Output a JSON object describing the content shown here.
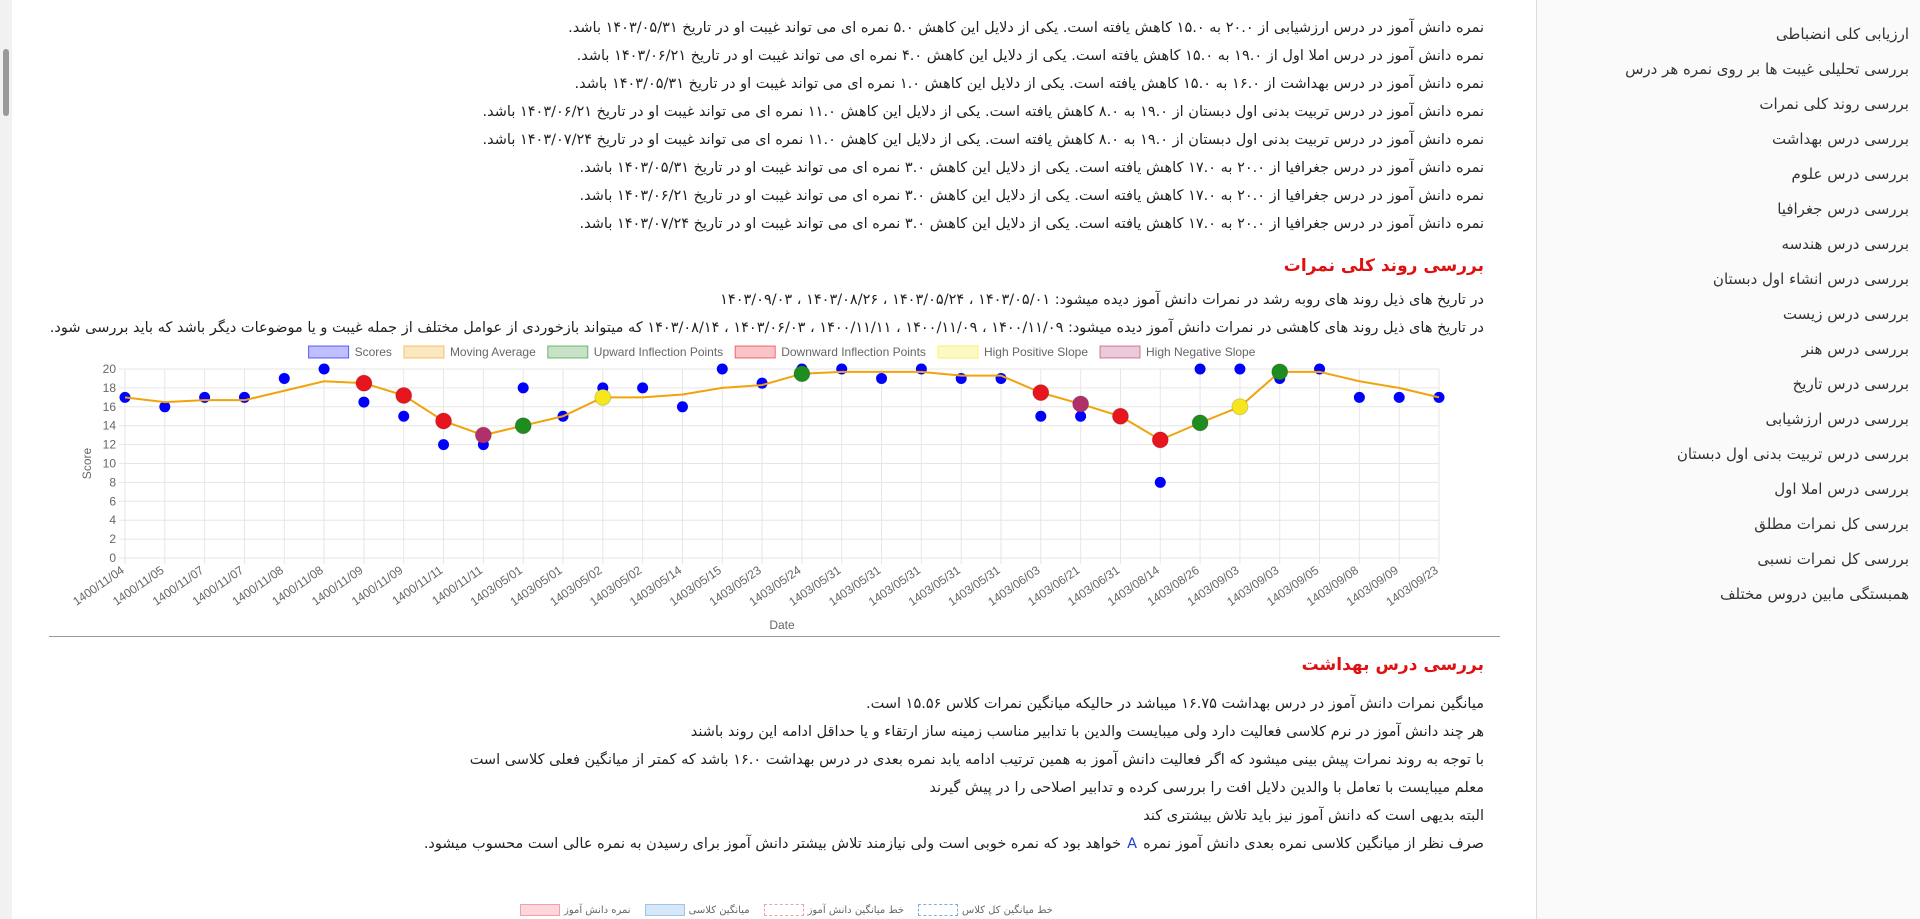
{
  "report": {
    "absence_lines": [
      "نمره دانش آموز در درس ارزشیابی از ۲۰.۰ به ۱۵.۰ کاهش یافته است. یکی از دلایل این کاهش ۵.۰ نمره ای می تواند غیبت او در تاریخ ۱۴۰۳/۰۵/۳۱ باشد.",
      "نمره دانش آموز در درس املا اول از ۱۹.۰ به ۱۵.۰ کاهش یافته است. یکی از دلایل این کاهش ۴.۰ نمره ای می تواند غیبت او در تاریخ ۱۴۰۳/۰۶/۲۱ باشد.",
      "نمره دانش آموز در درس بهداشت از ۱۶.۰ به ۱۵.۰ کاهش یافته است. یکی از دلایل این کاهش ۱.۰ نمره ای می تواند غیبت او در تاریخ ۱۴۰۳/۰۵/۳۱ باشد.",
      "نمره دانش آموز در درس تربیت بدنی اول دبستان از ۱۹.۰ به ۸.۰ کاهش یافته است. یکی از دلایل این کاهش ۱۱.۰ نمره ای می تواند غیبت او در تاریخ ۱۴۰۳/۰۶/۲۱ باشد.",
      "نمره دانش آموز در درس تربیت بدنی اول دبستان از ۱۹.۰ به ۸.۰ کاهش یافته است. یکی از دلایل این کاهش ۱۱.۰ نمره ای می تواند غیبت او در تاریخ ۱۴۰۳/۰۷/۲۴ باشد.",
      "نمره دانش آموز در درس جغرافیا از ۲۰.۰ به ۱۷.۰ کاهش یافته است. یکی از دلایل این کاهش ۳.۰ نمره ای می تواند غیبت او در تاریخ ۱۴۰۳/۰۵/۳۱ باشد.",
      "نمره دانش آموز در درس جغرافیا از ۲۰.۰ به ۱۷.۰ کاهش یافته است. یکی از دلایل این کاهش ۳.۰ نمره ای می تواند غیبت او در تاریخ ۱۴۰۳/۰۶/۲۱ باشد.",
      "نمره دانش آموز در درس جغرافیا از ۲۰.۰ به ۱۷.۰ کاهش یافته است. یکی از دلایل این کاهش ۳.۰ نمره ای می تواند غیبت او در تاریخ ۱۴۰۳/۰۷/۲۴ باشد."
    ],
    "trend": {
      "heading": "بررسی روند کلی نمرات",
      "growth": "در تاریخ های ذیل روند های روبه رشد در نمرات دانش آموز دیده میشود: ۱۴۰۳/۰۵/۰۱ ، ۱۴۰۳/۰۵/۲۴ ، ۱۴۰۳/۰۸/۲۶ ، ۱۴۰۳/۰۹/۰۳",
      "decline": "در تاریخ های ذیل روند های کاهشی در نمرات دانش آموز دیده میشود: ۱۴۰۰/۱۱/۰۹ ، ۱۴۰۰/۱۱/۰۹ ، ۱۴۰۰/۱۱/۱۱ ، ۱۴۰۳/۰۶/۰۳ ، ۱۴۰۳/۰۸/۱۴ که میتواند بازخوردی از عوامل مختلف از جمله غیبت و یا موضوعات دیگر باشد که باید بررسی شود."
    },
    "health": {
      "heading": "بررسی درس بهداشت",
      "lines": [
        "میانگین نمرات دانش آموز در درس بهداشت ۱۶.۷۵ میباشد در حالیکه میانگین نمرات کلاس ۱۵.۵۶ است.",
        "هر چند دانش آموز در نرم کلاسی فعالیت دارد ولی میبایست والدین با تدابیر مناسب زمینه ساز ارتقاء و یا حداقل ادامه این روند باشند",
        "با توجه به روند نمرات پیش بینی میشود که اگر فعالیت دانش آموز به همین ترتیب ادامه یابد نمره بعدی در درس بهداشت ۱۶.۰ باشد که کمتر از میانگین فعلی کلاسی است",
        "معلم میبایست با تعامل با والدین دلایل افت را بررسی کرده و تدابیر اصلاحی را در پیش گیرند",
        "البته بدیهی است که دانش آموز نیز باید تلاش بیشتری کند"
      ],
      "grade_line": {
        "before": "صرف نظر از میانگین کلاسی نمره بعدی دانش آموز نمره",
        "grade": "A",
        "after": "خواهد بود که نمره خوبی است ولی نیازمند تلاش بیشتر دانش آموز برای رسیدن به نمره عالی است محسوب میشود."
      }
    },
    "bottom_legend": [
      "نمره دانش آموز",
      "میانگین کلاسی",
      "خط میانگین دانش آموز",
      "خط میانگین کل کلاس"
    ]
  },
  "sidebar": {
    "items": [
      "ارزیابی کلی انضباطی",
      "بررسی تحلیلی غیبت ها بر روی نمره هر درس",
      "بررسی روند کلی نمرات",
      "بررسی درس بهداشت",
      "بررسی درس علوم",
      "بررسی درس جغرافیا",
      "بررسی درس هندسه",
      "بررسی درس انشاء اول دبستان",
      "بررسی درس زیست",
      "بررسی درس هنر",
      "بررسی درس تاریخ",
      "بررسی درس ارزشیابی",
      "بررسی درس تربیت بدنی اول دبستان",
      "بررسی درس املا اول",
      "بررسی کل نمرات مطلق",
      "بررسی کل نمرات نسبی",
      "همبستگی مابین دروس مختلف"
    ]
  },
  "chart_data": {
    "type": "line",
    "x_label": "Date",
    "y_label": "Score",
    "categories": [
      "1400/11/04",
      "1400/11/05",
      "1400/11/07",
      "1400/11/07",
      "1400/11/08",
      "1400/11/08",
      "1400/11/09",
      "1400/11/09",
      "1400/11/11",
      "1400/11/11",
      "1403/05/01",
      "1403/05/01",
      "1403/05/02",
      "1403/05/02",
      "1403/05/14",
      "1403/05/15",
      "1403/05/23",
      "1403/05/24",
      "1403/05/31",
      "1403/05/31",
      "1403/05/31",
      "1403/05/31",
      "1403/05/31",
      "1403/06/03",
      "1403/06/21",
      "1403/06/31",
      "1403/08/14",
      "1403/08/26",
      "1403/09/03",
      "1403/09/03",
      "1403/09/05",
      "1403/09/08",
      "1403/09/09",
      "1403/09/23"
    ],
    "ylim": [
      0,
      20
    ],
    "yticks": [
      0,
      2,
      4,
      6,
      8,
      10,
      12,
      14,
      16,
      18,
      20
    ],
    "grid": true,
    "series": [
      {
        "name": "Scores",
        "kind": "scatter",
        "color": "#0000ff",
        "values": [
          17,
          16,
          17,
          17,
          19,
          20,
          16.5,
          15,
          12,
          12,
          18,
          15,
          18,
          18,
          16,
          20,
          18.5,
          20,
          20,
          19,
          20,
          19,
          19,
          15,
          15,
          15,
          8,
          20,
          20,
          19,
          20,
          17,
          17,
          17
        ]
      },
      {
        "name": "Moving Average",
        "kind": "line",
        "color": "#f0a30a",
        "values": [
          17,
          16.5,
          16.7,
          16.7,
          17.7,
          18.7,
          18.5,
          17.2,
          14.5,
          13,
          14,
          15,
          17,
          17,
          17.3,
          18,
          18.3,
          19.5,
          19.7,
          19.7,
          19.7,
          19.3,
          19.3,
          17.5,
          16.3,
          15,
          12.5,
          14.3,
          16,
          19.7,
          19.7,
          18.7,
          18,
          17
        ]
      },
      {
        "name": "Upward Inflection Points",
        "kind": "scatter",
        "color": "#1e8c1e",
        "values": [
          null,
          null,
          null,
          null,
          null,
          null,
          null,
          null,
          null,
          null,
          14,
          null,
          null,
          null,
          null,
          null,
          null,
          19.5,
          null,
          null,
          null,
          null,
          null,
          null,
          null,
          null,
          null,
          14.3,
          null,
          19.7,
          null,
          null,
          null,
          null
        ]
      },
      {
        "name": "Downward Inflection Points",
        "kind": "scatter",
        "color": "#e8141e",
        "values": [
          null,
          null,
          null,
          null,
          null,
          null,
          18.5,
          17.2,
          14.5,
          null,
          null,
          null,
          null,
          null,
          null,
          null,
          null,
          null,
          null,
          null,
          null,
          null,
          null,
          17.5,
          null,
          15,
          12.5,
          null,
          null,
          null,
          null,
          null,
          null,
          null
        ]
      },
      {
        "name": "High Positive Slope",
        "kind": "scatter",
        "color": "#f5e61e",
        "values": [
          null,
          null,
          null,
          null,
          null,
          null,
          null,
          null,
          null,
          null,
          null,
          null,
          17,
          null,
          null,
          null,
          null,
          null,
          null,
          null,
          null,
          null,
          null,
          null,
          null,
          null,
          null,
          null,
          16,
          null,
          null,
          null,
          null,
          null
        ]
      },
      {
        "name": "High Negative Slope",
        "kind": "scatter",
        "color": "#b0306a",
        "values": [
          null,
          null,
          null,
          null,
          null,
          null,
          null,
          null,
          null,
          13,
          null,
          null,
          null,
          null,
          null,
          null,
          null,
          null,
          null,
          null,
          null,
          null,
          null,
          null,
          16.3,
          null,
          null,
          null,
          null,
          null,
          null,
          null,
          null,
          null
        ]
      }
    ]
  }
}
